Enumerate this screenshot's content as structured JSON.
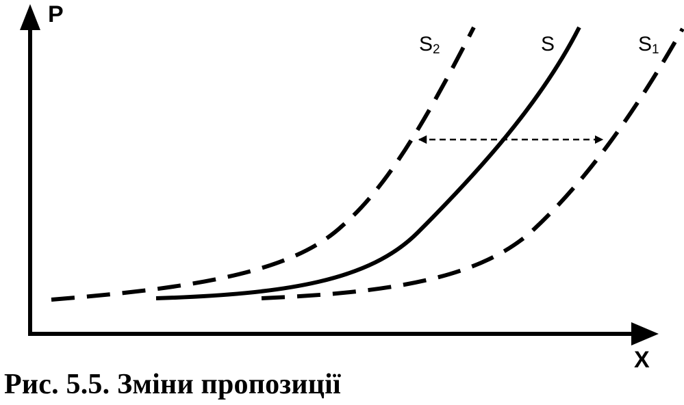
{
  "axes": {
    "y_label": "P",
    "x_label": "X"
  },
  "curves": [
    {
      "id": "S2",
      "base": "S",
      "sub": "2",
      "style": "dashed"
    },
    {
      "id": "S",
      "base": "S",
      "sub": "",
      "style": "solid"
    },
    {
      "id": "S1",
      "base": "S",
      "sub": "1",
      "style": "dashed"
    }
  ],
  "shift_arrow": {
    "style": "dashed",
    "heads": "both",
    "between": [
      "S2",
      "S1"
    ]
  },
  "caption": "Рис. 5.5. Зміни пропозиції",
  "colors": {
    "ink": "#000000",
    "background": "#ffffff"
  }
}
